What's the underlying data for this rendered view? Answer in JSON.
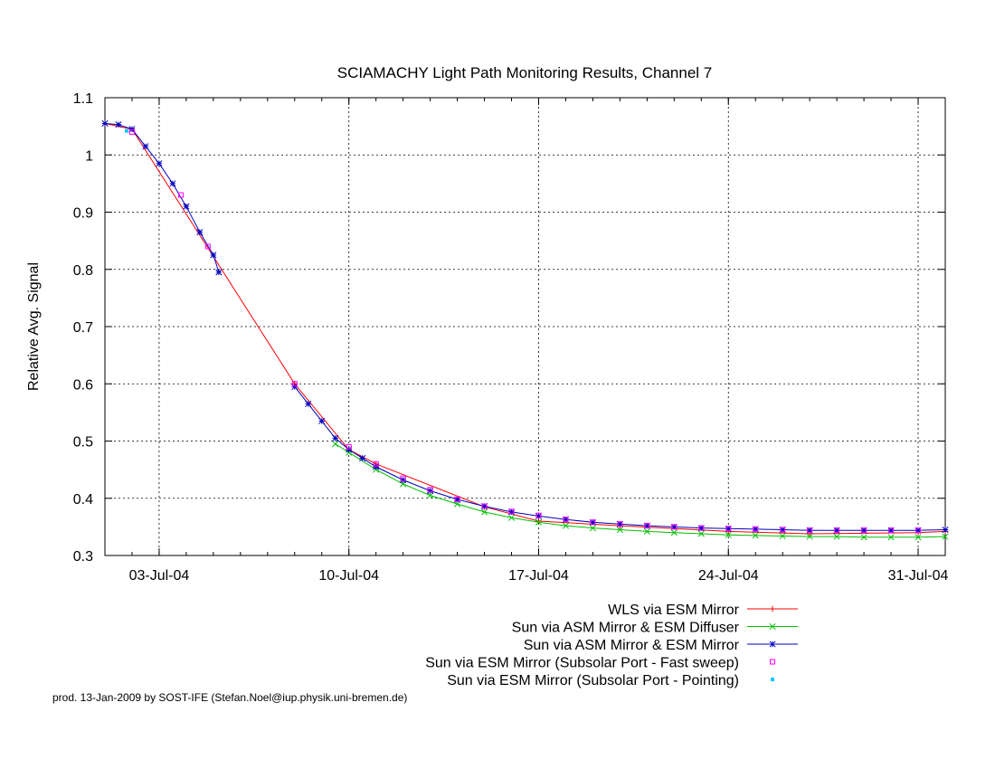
{
  "chart_data": {
    "type": "line",
    "title": "SCIAMACHY Light Path Monitoring Results, Channel 7",
    "xlabel": "",
    "ylabel": "Relative Avg. Signal",
    "x_axis_type": "date",
    "xlim": [
      "2004-07-01",
      "2004-08-01"
    ],
    "ylim": [
      0.3,
      1.1
    ],
    "x_ticks": [
      {
        "date": "2004-07-03",
        "label": "03-Jul-04"
      },
      {
        "date": "2004-07-10",
        "label": "10-Jul-04"
      },
      {
        "date": "2004-07-17",
        "label": "17-Jul-04"
      },
      {
        "date": "2004-07-24",
        "label": "24-Jul-04"
      },
      {
        "date": "2004-07-31",
        "label": "31-Jul-04"
      }
    ],
    "y_ticks": [
      {
        "value": 0.3,
        "label": "0.3"
      },
      {
        "value": 0.4,
        "label": "0.4"
      },
      {
        "value": 0.5,
        "label": "0.5"
      },
      {
        "value": 0.6,
        "label": "0.6"
      },
      {
        "value": 0.7,
        "label": "0.7"
      },
      {
        "value": 0.8,
        "label": "0.8"
      },
      {
        "value": 0.9,
        "label": "0.9"
      },
      {
        "value": 1.0,
        "label": "1"
      },
      {
        "value": 1.1,
        "label": "1.1"
      }
    ],
    "grid": true,
    "legend_position": "bottom-right, below plot",
    "series": [
      {
        "name": "WLS via ESM Mirror",
        "color": "#ff0000",
        "marker": "plus",
        "style": "line",
        "points": [
          [
            "2004-07-01",
            1.055
          ],
          [
            "2004-07-02",
            1.045
          ],
          [
            "2004-07-08",
            0.6
          ],
          [
            "2004-07-10",
            0.485
          ],
          [
            "2004-07-11",
            0.46
          ],
          [
            "2004-07-15",
            0.385
          ],
          [
            "2004-07-17",
            0.36
          ],
          [
            "2004-07-20",
            0.352
          ],
          [
            "2004-07-24",
            0.342
          ],
          [
            "2004-07-27",
            0.338
          ],
          [
            "2004-07-31",
            0.34
          ],
          [
            "2004-08-01",
            0.342
          ]
        ]
      },
      {
        "name": "Sun via ASM Mirror & ESM Diffuser",
        "color": "#00c000",
        "marker": "x",
        "style": "line",
        "points": [
          [
            "2004-07-09.5",
            0.495
          ],
          [
            "2004-07-10",
            0.48
          ],
          [
            "2004-07-11",
            0.45
          ],
          [
            "2004-07-12",
            0.425
          ],
          [
            "2004-07-13",
            0.405
          ],
          [
            "2004-07-14",
            0.39
          ],
          [
            "2004-07-15",
            0.376
          ],
          [
            "2004-07-16",
            0.366
          ],
          [
            "2004-07-17",
            0.358
          ],
          [
            "2004-07-18",
            0.352
          ],
          [
            "2004-07-19",
            0.348
          ],
          [
            "2004-07-20",
            0.345
          ],
          [
            "2004-07-21",
            0.342
          ],
          [
            "2004-07-22",
            0.34
          ],
          [
            "2004-07-23",
            0.338
          ],
          [
            "2004-07-24",
            0.336
          ],
          [
            "2004-07-25",
            0.335
          ],
          [
            "2004-07-26",
            0.334
          ],
          [
            "2004-07-27",
            0.333
          ],
          [
            "2004-07-28",
            0.333
          ],
          [
            "2004-07-29",
            0.332
          ],
          [
            "2004-07-30",
            0.332
          ],
          [
            "2004-07-31",
            0.332
          ],
          [
            "2004-08-01",
            0.333
          ]
        ]
      },
      {
        "name": "Sun via ASM Mirror & ESM Mirror",
        "color": "#0000c0",
        "marker": "star",
        "style": "line",
        "segments": [
          [
            [
              "2004-07-01",
              1.055
            ],
            [
              "2004-07-01.5",
              1.053
            ],
            [
              "2004-07-02",
              1.045
            ],
            [
              "2004-07-02.5",
              1.015
            ],
            [
              "2004-07-03",
              0.985
            ],
            [
              "2004-07-03.5",
              0.95
            ],
            [
              "2004-07-04",
              0.91
            ],
            [
              "2004-07-04.5",
              0.865
            ],
            [
              "2004-07-05",
              0.825
            ],
            [
              "2004-07-05.2",
              0.795
            ]
          ],
          [
            [
              "2004-07-08",
              0.595
            ],
            [
              "2004-07-08.5",
              0.565
            ],
            [
              "2004-07-09",
              0.535
            ],
            [
              "2004-07-09.5",
              0.505
            ],
            [
              "2004-07-10",
              0.485
            ],
            [
              "2004-07-10.5",
              0.47
            ],
            [
              "2004-07-11",
              0.455
            ],
            [
              "2004-07-12",
              0.432
            ],
            [
              "2004-07-13",
              0.413
            ],
            [
              "2004-07-14",
              0.398
            ],
            [
              "2004-07-15",
              0.386
            ],
            [
              "2004-07-16",
              0.376
            ],
            [
              "2004-07-17",
              0.369
            ],
            [
              "2004-07-18",
              0.363
            ],
            [
              "2004-07-19",
              0.358
            ],
            [
              "2004-07-20",
              0.355
            ],
            [
              "2004-07-21",
              0.352
            ],
            [
              "2004-07-22",
              0.35
            ],
            [
              "2004-07-23",
              0.348
            ],
            [
              "2004-07-24",
              0.347
            ],
            [
              "2004-07-25",
              0.346
            ],
            [
              "2004-07-26",
              0.345
            ],
            [
              "2004-07-27",
              0.344
            ],
            [
              "2004-07-28",
              0.344
            ],
            [
              "2004-07-29",
              0.344
            ],
            [
              "2004-07-30",
              0.344
            ],
            [
              "2004-07-31",
              0.344
            ],
            [
              "2004-08-01",
              0.345
            ]
          ]
        ]
      },
      {
        "name": "Sun via ESM Mirror (Subsolar Port - Fast sweep)",
        "color": "#ff00ff",
        "marker": "square",
        "style": "points",
        "points": [
          [
            "2004-07-02",
            1.04
          ],
          [
            "2004-07-03.8",
            0.93
          ],
          [
            "2004-07-04.8",
            0.84
          ],
          [
            "2004-07-08",
            0.6
          ],
          [
            "2004-07-10",
            0.49
          ],
          [
            "2004-07-11",
            0.46
          ],
          [
            "2004-07-12",
            0.435
          ],
          [
            "2004-07-13",
            0.415
          ],
          [
            "2004-07-14",
            0.398
          ],
          [
            "2004-07-15",
            0.386
          ],
          [
            "2004-07-16",
            0.377
          ],
          [
            "2004-07-17",
            0.37
          ],
          [
            "2004-07-18",
            0.363
          ],
          [
            "2004-07-19",
            0.358
          ],
          [
            "2004-07-20",
            0.355
          ],
          [
            "2004-07-21",
            0.352
          ],
          [
            "2004-07-22",
            0.35
          ],
          [
            "2004-07-23",
            0.348
          ],
          [
            "2004-07-24",
            0.347
          ],
          [
            "2004-07-25",
            0.346
          ],
          [
            "2004-07-26",
            0.345
          ],
          [
            "2004-07-27",
            0.344
          ],
          [
            "2004-07-28",
            0.344
          ],
          [
            "2004-07-29",
            0.344
          ],
          [
            "2004-07-30",
            0.344
          ],
          [
            "2004-07-31",
            0.344
          ]
        ]
      },
      {
        "name": "Sun via ESM Mirror (Subsolar Port - Pointing)",
        "color": "#00c8ff",
        "marker": "dot",
        "style": "points",
        "points": [
          [
            "2004-07-01.8",
            1.042
          ]
        ]
      }
    ]
  },
  "footer": "prod. 13-Jan-2009 by SOST-IFE (Stefan.Noel@iup.physik.uni-bremen.de)"
}
